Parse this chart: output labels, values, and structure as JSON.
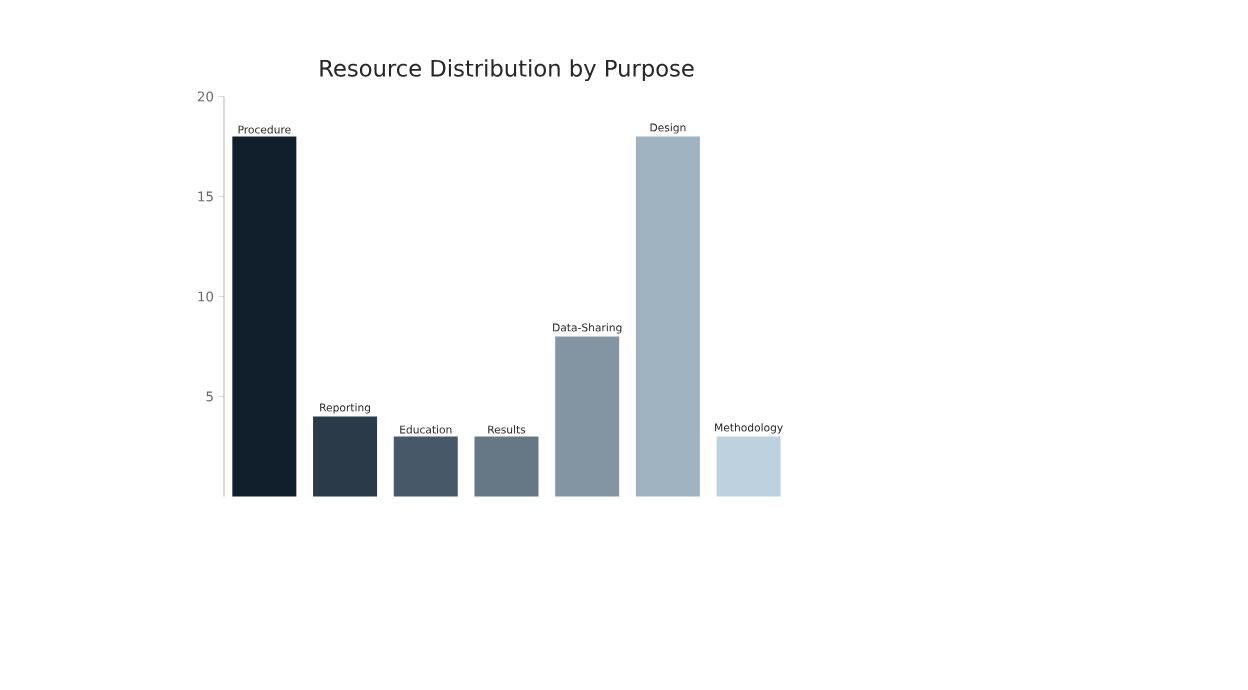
{
  "chart_data": {
    "type": "bar",
    "title": "Resource Distribution by Purpose",
    "categories": [
      "Procedure",
      "Reporting",
      "Education",
      "Results",
      "Data-Sharing",
      "Design",
      "Methodology"
    ],
    "values": [
      18,
      4,
      3,
      3,
      8,
      18,
      3
    ],
    "colors": [
      "#111f2c",
      "#2a3a48",
      "#475868",
      "#667785",
      "#8395a2",
      "#a0b3c0",
      "#bdd1df"
    ],
    "ylim": [
      0,
      20
    ],
    "yticks": [
      5,
      10,
      15,
      20
    ],
    "tick_labels": "y"
  }
}
